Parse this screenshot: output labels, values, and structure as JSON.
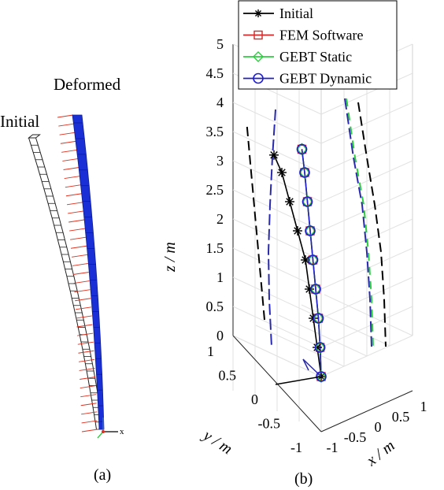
{
  "panel_a": {
    "caption": "(a)",
    "label_initial": "Initial",
    "label_deformed": "Deformed",
    "triad_label": "x",
    "colors": {
      "deformed": "#1a2fd6",
      "load_arrows": "#e0301e",
      "initial": "#222222"
    }
  },
  "panel_b": {
    "caption": "(b)",
    "axis_labels": {
      "z": "z / m",
      "y": "y / m",
      "x": "x / m"
    },
    "z_ticks": [
      "0",
      "0.5",
      "1",
      "1.5",
      "2",
      "2.5",
      "3",
      "3.5",
      "4",
      "4.5",
      "5"
    ],
    "y_ticks": [
      "1",
      "0.5",
      "0",
      "-0.5",
      "-1"
    ],
    "x_ticks": [
      "1",
      "0.5",
      "0",
      "-0.5",
      "-1"
    ]
  },
  "legend": {
    "items": [
      {
        "label": "Initial",
        "color": "#000000",
        "marker": "asterisk"
      },
      {
        "label": "FEM Software",
        "color": "#d62728",
        "marker": "square"
      },
      {
        "label": "GEBT Static",
        "color": "#2ecc40",
        "marker": "diamond"
      },
      {
        "label": "GEBT Dynamic",
        "color": "#1f1fd0",
        "marker": "circle"
      }
    ]
  },
  "chart_data": {
    "type": "line",
    "projection": "3d",
    "xlabel": "x / m",
    "ylabel": "y / m",
    "zlabel": "z / m",
    "xlim": [
      -1,
      1
    ],
    "ylim": [
      -1,
      1
    ],
    "zlim": [
      0,
      5
    ],
    "grid": true,
    "legend_position": "top",
    "series": [
      {
        "name": "Initial",
        "color": "#000000",
        "z": [
          0,
          0.5,
          1.0,
          1.5,
          2.0,
          2.5,
          3.0,
          3.5,
          3.8
        ],
        "x": [
          0,
          -0.05,
          -0.1,
          -0.15,
          -0.2,
          -0.3,
          -0.4,
          -0.5,
          -0.6
        ],
        "y": [
          0,
          0,
          0,
          0,
          0,
          0,
          0,
          0,
          0
        ]
      },
      {
        "name": "FEM Software",
        "color": "#d62728",
        "z": [
          0,
          0.5,
          1.0,
          1.5,
          2.0,
          2.5,
          3.0,
          3.5,
          3.9
        ],
        "x": [
          0,
          0,
          0,
          0,
          0,
          0,
          0,
          0,
          0
        ],
        "y": [
          0,
          0.02,
          0.05,
          0.1,
          0.15,
          0.2,
          0.25,
          0.3,
          0.35
        ]
      },
      {
        "name": "GEBT Static",
        "color": "#2ecc40",
        "z": [
          0,
          0.5,
          1.0,
          1.5,
          2.0,
          2.5,
          3.0,
          3.5,
          3.9
        ],
        "x": [
          0,
          0,
          0,
          0,
          0,
          0,
          0,
          0,
          0
        ],
        "y": [
          0,
          0.02,
          0.05,
          0.1,
          0.15,
          0.2,
          0.25,
          0.3,
          0.35
        ]
      },
      {
        "name": "GEBT Dynamic",
        "color": "#1f1fd0",
        "z": [
          0,
          0.5,
          1.0,
          1.5,
          2.0,
          2.5,
          3.0,
          3.5,
          3.9
        ],
        "x": [
          0,
          0,
          0,
          0,
          0,
          0,
          0,
          0,
          0
        ],
        "y": [
          0,
          0.02,
          0.05,
          0.1,
          0.15,
          0.2,
          0.25,
          0.3,
          0.35
        ]
      }
    ]
  }
}
